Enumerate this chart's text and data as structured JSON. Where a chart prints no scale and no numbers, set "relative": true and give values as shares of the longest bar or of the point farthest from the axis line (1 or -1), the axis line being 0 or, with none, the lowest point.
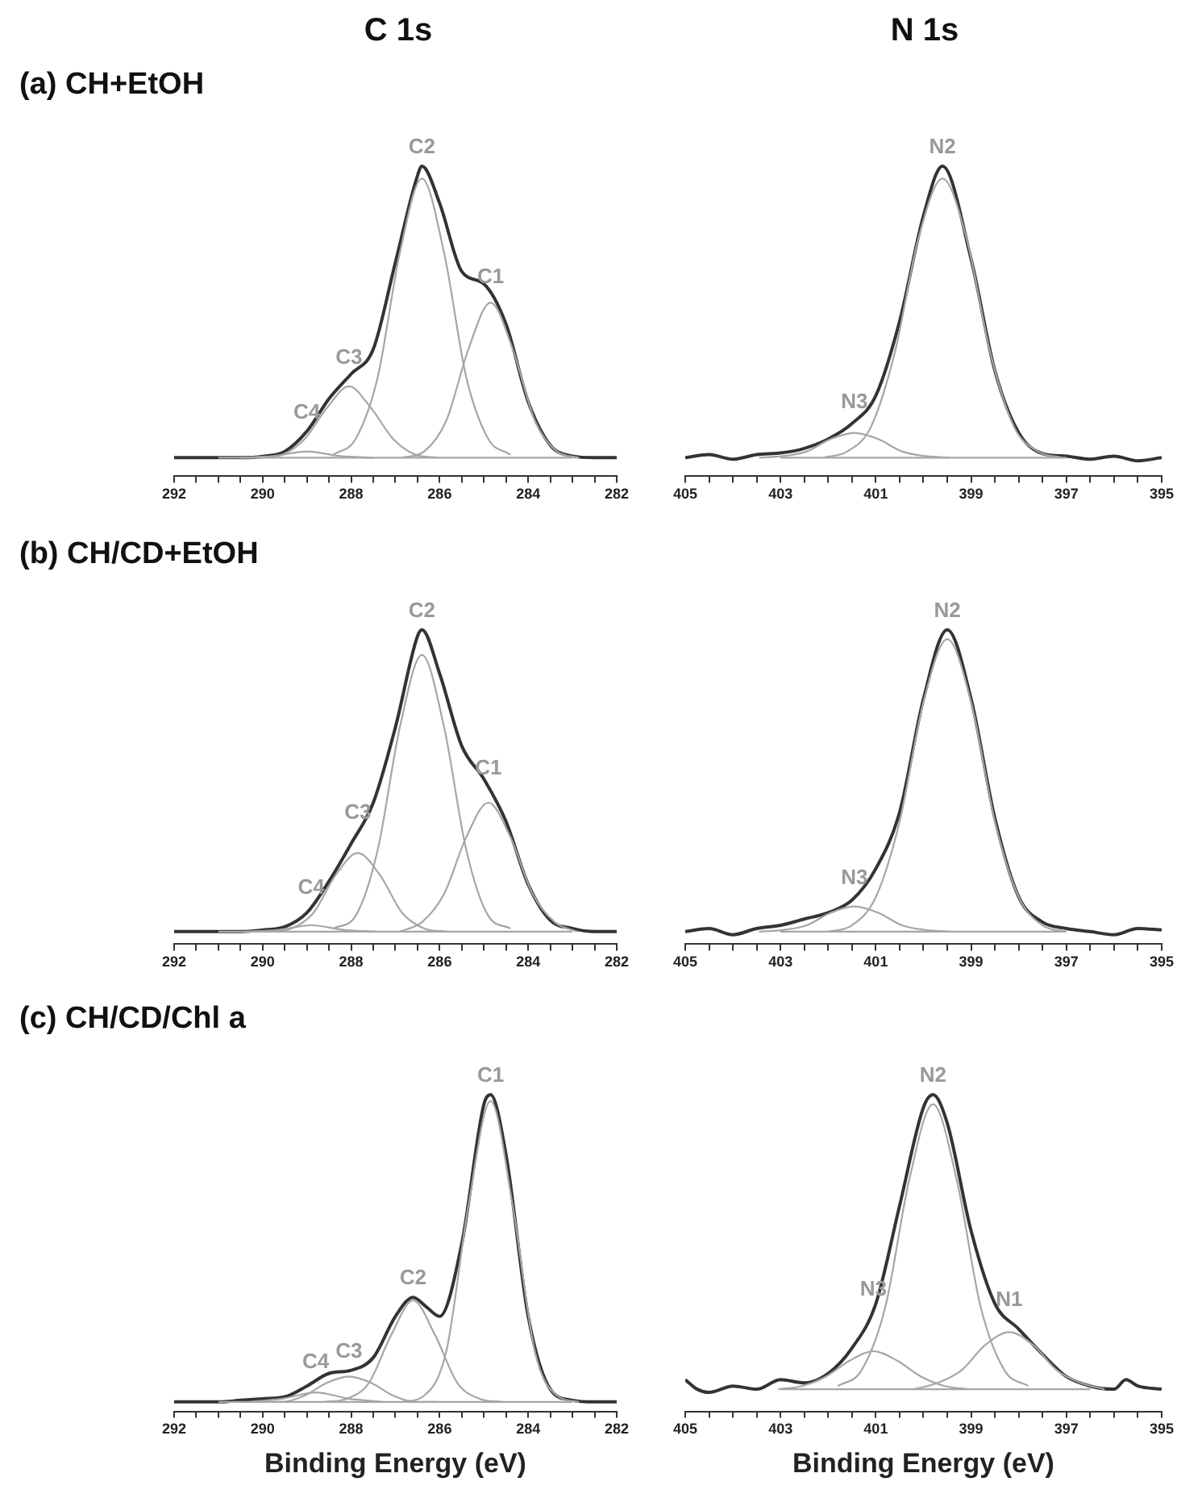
{
  "chart_data": [
    {
      "type": "line",
      "title": "C 1s",
      "subtitle": "(a) CH+EtOH",
      "relative": true,
      "xlim": [
        292,
        282
      ],
      "xticks": [
        292,
        {
          "value": 291.5,
          "label": null
        },
        {
          "value": 291,
          "label": null
        },
        {
          "value": 290.5,
          "label": null
        },
        290,
        {
          "value": 289.5,
          "label": null
        },
        {
          "value": 289,
          "label": null
        },
        {
          "value": 288.5,
          "label": null
        },
        288,
        {
          "value": 287.5,
          "label": null
        },
        {
          "value": 287,
          "label": null
        },
        {
          "value": 286.5,
          "label": null
        },
        286,
        {
          "value": 285.5,
          "label": null
        },
        {
          "value": 285,
          "label": null
        },
        {
          "value": 284.5,
          "label": null
        },
        284,
        {
          "value": 283.5,
          "label": null
        },
        {
          "value": 283,
          "label": null
        },
        {
          "value": 282.5,
          "label": null
        },
        282
      ],
      "series": [
        {
          "color": "#a6a6a6",
          "x": [
            291,
            283
          ],
          "values": [
            0.06,
            0.06
          ]
        },
        {
          "color": "#a6a6a6",
          "x": [
            290.5,
            289.75,
            289,
            288.25,
            287.5
          ],
          "values": [
            0.06,
            0.065,
            0.08,
            0.065,
            0.06
          ]
        },
        {
          "color": "#a6a6a6",
          "x": [
            290.05,
            289.55,
            289.05,
            288.55,
            288.05,
            287.55,
            287.05,
            286.55,
            286.05
          ],
          "values": [
            0.06,
            0.07,
            0.12,
            0.22,
            0.29,
            0.22,
            0.12,
            0.07,
            0.06
          ]
        },
        {
          "color": "#a6a6a6",
          "x": [
            288.4,
            287.9,
            287.4,
            286.9,
            286.4,
            285.9,
            285.4,
            284.9,
            284.4
          ],
          "values": [
            0.07,
            0.12,
            0.32,
            0.72,
            0.96,
            0.72,
            0.32,
            0.12,
            0.07
          ]
        },
        {
          "color": "#a6a6a6",
          "x": [
            286.85,
            286.35,
            285.85,
            285.35,
            284.85,
            284.35,
            283.85,
            283.35,
            282.85
          ],
          "values": [
            0.06,
            0.08,
            0.18,
            0.41,
            0.56,
            0.41,
            0.18,
            0.08,
            0.06
          ]
        },
        {
          "color": "#333333",
          "x": [
            292,
            291,
            290.5,
            290,
            289.5,
            289,
            288.5,
            288,
            287.5,
            287,
            286.5,
            286.4,
            286,
            285.5,
            285,
            284.5,
            284,
            283.5,
            283,
            282.5,
            282
          ],
          "values": [
            0.06,
            0.06,
            0.06,
            0.064,
            0.08,
            0.145,
            0.25,
            0.33,
            0.41,
            0.69,
            0.97,
            1,
            0.88,
            0.66,
            0.62,
            0.49,
            0.24,
            0.1,
            0.065,
            0.06,
            0.06
          ]
        }
      ],
      "annotations": [
        {
          "text": "C1",
          "x": 284.85,
          "y": 0.56
        },
        {
          "text": "C2",
          "x": 286.4,
          "y": 0.96
        },
        {
          "text": "C3",
          "x": 288.05,
          "y": 0.29
        },
        {
          "text": "C4",
          "x": 289,
          "y": 0.08
        }
      ]
    },
    {
      "type": "line",
      "title": "N 1s",
      "relative": true,
      "xlim": [
        405,
        395
      ],
      "xticks": [
        405,
        {
          "value": 404.5,
          "label": null
        },
        {
          "value": 404,
          "label": null
        },
        {
          "value": 403.5,
          "label": null
        },
        403,
        {
          "value": 402.5,
          "label": null
        },
        {
          "value": 402,
          "label": null
        },
        {
          "value": 401.5,
          "label": null
        },
        401,
        {
          "value": 400.5,
          "label": null
        },
        {
          "value": 400,
          "label": null
        },
        {
          "value": 399.5,
          "label": null
        },
        399,
        {
          "value": 398.5,
          "label": null
        },
        {
          "value": 398,
          "label": null
        },
        {
          "value": 397.5,
          "label": null
        },
        397,
        {
          "value": 396.5,
          "label": null
        },
        {
          "value": 396,
          "label": null
        },
        {
          "value": 395.5,
          "label": null
        },
        395
      ],
      "series": [
        {
          "color": "#a6a6a6",
          "x": [
            403,
            397
          ],
          "values": [
            0.06,
            0.06
          ]
        },
        {
          "color": "#a6a6a6",
          "x": [
            403.45,
            402.95,
            402.45,
            401.95,
            401.45,
            400.95,
            400.45,
            399.95,
            399.45
          ],
          "values": [
            0.06,
            0.065,
            0.08,
            0.12,
            0.14,
            0.12,
            0.08,
            0.065,
            0.06
          ]
        },
        {
          "color": "#a6a6a6",
          "x": [
            402.1,
            401.6,
            401.1,
            400.6,
            400.1,
            399.6,
            399.1,
            398.6,
            398.1,
            397.6,
            397.1
          ],
          "values": [
            0.06,
            0.08,
            0.16,
            0.4,
            0.77,
            0.96,
            0.77,
            0.4,
            0.16,
            0.08,
            0.06
          ]
        },
        {
          "color": "#333333",
          "x": [
            405,
            404.5,
            404,
            403.5,
            403,
            402.5,
            402,
            401.5,
            401,
            400.5,
            400,
            399.6,
            399,
            398.5,
            398,
            397.5,
            397,
            396.5,
            396,
            395.5,
            395
          ],
          "values": [
            0.06,
            0.07,
            0.055,
            0.07,
            0.075,
            0.09,
            0.12,
            0.17,
            0.26,
            0.5,
            0.84,
            1,
            0.7,
            0.34,
            0.14,
            0.073,
            0.065,
            0.055,
            0.065,
            0.05,
            0.06
          ]
        }
      ],
      "annotations": [
        {
          "text": "N2",
          "x": 399.6,
          "y": 0.96
        },
        {
          "text": "N3",
          "x": 401.45,
          "y": 0.14
        }
      ]
    },
    {
      "type": "line",
      "subtitle": "(b) CH/CD+EtOH",
      "relative": true,
      "xlim": [
        292,
        282
      ],
      "xticks": [
        292,
        {
          "value": 291.5,
          "label": null
        },
        {
          "value": 291,
          "label": null
        },
        {
          "value": 290.5,
          "label": null
        },
        290,
        {
          "value": 289.5,
          "label": null
        },
        {
          "value": 289,
          "label": null
        },
        {
          "value": 288.5,
          "label": null
        },
        288,
        {
          "value": 287.5,
          "label": null
        },
        {
          "value": 287,
          "label": null
        },
        {
          "value": 286.5,
          "label": null
        },
        286,
        {
          "value": 285.5,
          "label": null
        },
        {
          "value": 285,
          "label": null
        },
        {
          "value": 284.5,
          "label": null
        },
        284,
        {
          "value": 283.5,
          "label": null
        },
        {
          "value": 283,
          "label": null
        },
        {
          "value": 282.5,
          "label": null
        },
        282
      ],
      "series": [
        {
          "color": "#a6a6a6",
          "x": [
            291,
            283
          ],
          "values": [
            0.04,
            0.04
          ]
        },
        {
          "color": "#a6a6a6",
          "x": [
            290.4,
            289.65,
            288.9,
            288.15,
            287.4
          ],
          "values": [
            0.04,
            0.045,
            0.06,
            0.045,
            0.04
          ]
        },
        {
          "color": "#a6a6a6",
          "x": [
            289.85,
            289.35,
            288.85,
            288.35,
            287.85,
            287.35,
            286.85,
            286.35,
            285.85
          ],
          "values": [
            0.04,
            0.05,
            0.1,
            0.22,
            0.29,
            0.22,
            0.1,
            0.05,
            0.04
          ]
        },
        {
          "color": "#a6a6a6",
          "x": [
            288.4,
            287.9,
            287.4,
            286.9,
            286.4,
            285.9,
            285.4,
            284.9,
            284.4
          ],
          "values": [
            0.05,
            0.09,
            0.3,
            0.69,
            0.92,
            0.69,
            0.3,
            0.09,
            0.05
          ]
        },
        {
          "color": "#a6a6a6",
          "x": [
            286.9,
            286.4,
            285.9,
            285.4,
            284.9,
            284.4,
            283.9,
            283.4,
            282.9
          ],
          "values": [
            0.04,
            0.07,
            0.16,
            0.34,
            0.45,
            0.34,
            0.16,
            0.07,
            0.04
          ]
        },
        {
          "color": "#333333",
          "x": [
            292,
            291,
            290.5,
            290,
            289.5,
            289,
            288.5,
            288,
            287.5,
            287,
            286.5,
            286.4,
            286,
            285.5,
            285,
            284.5,
            284,
            283.5,
            283,
            282.5,
            282
          ],
          "values": [
            0.04,
            0.04,
            0.04,
            0.045,
            0.055,
            0.1,
            0.2,
            0.32,
            0.45,
            0.69,
            0.98,
            1,
            0.86,
            0.63,
            0.525,
            0.39,
            0.19,
            0.076,
            0.05,
            0.04,
            0.04
          ]
        }
      ],
      "annotations": [
        {
          "text": "C1",
          "x": 284.9,
          "y": 0.45
        },
        {
          "text": "C2",
          "x": 286.4,
          "y": 0.92
        },
        {
          "text": "C3",
          "x": 287.85,
          "y": 0.29
        },
        {
          "text": "C4",
          "x": 288.9,
          "y": 0.06
        }
      ]
    },
    {
      "type": "line",
      "relative": true,
      "xlim": [
        405,
        395
      ],
      "xticks": [
        405,
        {
          "value": 404.5,
          "label": null
        },
        {
          "value": 404,
          "label": null
        },
        {
          "value": 403.5,
          "label": null
        },
        403,
        {
          "value": 402.5,
          "label": null
        },
        {
          "value": 402,
          "label": null
        },
        {
          "value": 401.5,
          "label": null
        },
        401,
        {
          "value": 400.5,
          "label": null
        },
        {
          "value": 400,
          "label": null
        },
        {
          "value": 399.5,
          "label": null
        },
        399,
        {
          "value": 398.5,
          "label": null
        },
        {
          "value": 398,
          "label": null
        },
        {
          "value": 397.5,
          "label": null
        },
        397,
        {
          "value": 396.5,
          "label": null
        },
        {
          "value": 396,
          "label": null
        },
        {
          "value": 395.5,
          "label": null
        },
        395
      ],
      "series": [
        {
          "color": "#a6a6a6",
          "x": [
            403,
            397
          ],
          "values": [
            0.04,
            0.04
          ]
        },
        {
          "color": "#a6a6a6",
          "x": [
            403.45,
            402.95,
            402.45,
            401.95,
            401.45,
            400.95,
            400.45,
            399.95,
            399.45
          ],
          "values": [
            0.04,
            0.045,
            0.06,
            0.1,
            0.12,
            0.1,
            0.06,
            0.045,
            0.04
          ]
        },
        {
          "color": "#a6a6a6",
          "x": [
            402,
            401.5,
            401,
            400.5,
            400,
            399.5,
            399,
            398.5,
            398,
            397.5,
            397
          ],
          "values": [
            0.04,
            0.06,
            0.15,
            0.39,
            0.77,
            0.97,
            0.77,
            0.39,
            0.15,
            0.06,
            0.04
          ]
        },
        {
          "color": "#333333",
          "x": [
            405,
            404.5,
            404,
            403.5,
            403,
            402.5,
            402,
            401.5,
            401,
            400.5,
            400,
            399.5,
            399,
            398.5,
            398,
            397.5,
            397,
            396.5,
            396,
            395.5,
            395
          ],
          "values": [
            0.04,
            0.05,
            0.03,
            0.05,
            0.06,
            0.08,
            0.1,
            0.14,
            0.24,
            0.42,
            0.78,
            1,
            0.78,
            0.4,
            0.15,
            0.07,
            0.05,
            0.04,
            0.03,
            0.05,
            0.045
          ]
        }
      ],
      "annotations": [
        {
          "text": "N2",
          "x": 399.5,
          "y": 0.97
        },
        {
          "text": "N3",
          "x": 401.45,
          "y": 0.12
        }
      ]
    },
    {
      "type": "line",
      "subtitle": "(c) CH/CD/Chl a",
      "xlabel": "Binding Energy (eV)",
      "relative": true,
      "xlim": [
        292,
        282
      ],
      "xticks": [
        292,
        {
          "value": 291.5,
          "label": null
        },
        {
          "value": 291,
          "label": null
        },
        {
          "value": 290.5,
          "label": null
        },
        290,
        {
          "value": 289.5,
          "label": null
        },
        {
          "value": 289,
          "label": null
        },
        {
          "value": 288.5,
          "label": null
        },
        288,
        {
          "value": 287.5,
          "label": null
        },
        {
          "value": 287,
          "label": null
        },
        {
          "value": 286.5,
          "label": null
        },
        286,
        {
          "value": 285.5,
          "label": null
        },
        {
          "value": 285,
          "label": null
        },
        {
          "value": 284.5,
          "label": null
        },
        284,
        {
          "value": 283.5,
          "label": null
        },
        {
          "value": 283,
          "label": null
        },
        {
          "value": 282.5,
          "label": null
        },
        282
      ],
      "series": [
        {
          "color": "#a6a6a6",
          "x": [
            291,
            283
          ],
          "values": [
            0.03,
            0.03
          ]
        },
        {
          "color": "#a6a6a6",
          "x": [
            290.3,
            289.55,
            288.8,
            288.05,
            287.3
          ],
          "values": [
            0.03,
            0.04,
            0.06,
            0.04,
            0.03
          ]
        },
        {
          "color": "#a6a6a6",
          "x": [
            290.05,
            289.55,
            289.05,
            288.55,
            288.05,
            287.55,
            287.05,
            286.55,
            286.05
          ],
          "values": [
            0.03,
            0.03,
            0.05,
            0.09,
            0.11,
            0.09,
            0.05,
            0.03,
            0.03
          ]
        },
        {
          "color": "#a6a6a6",
          "x": [
            288.6,
            288.1,
            287.6,
            287.1,
            286.6,
            286.1,
            285.6,
            285.1,
            284.6
          ],
          "values": [
            0.03,
            0.04,
            0.09,
            0.24,
            0.35,
            0.24,
            0.09,
            0.04,
            0.03
          ]
        },
        {
          "color": "#a6a6a6",
          "x": [
            286.85,
            286.35,
            285.85,
            285.35,
            284.85,
            284.35,
            283.85,
            283.35,
            282.85
          ],
          "values": [
            0.03,
            0.05,
            0.19,
            0.65,
            0.98,
            0.65,
            0.19,
            0.05,
            0.03
          ]
        },
        {
          "color": "#333333",
          "x": [
            292,
            291,
            290.5,
            290,
            289.5,
            289,
            288.5,
            288,
            287.5,
            287,
            286.6,
            286.3,
            286,
            285.5,
            285,
            284.85,
            284.5,
            284,
            283.5,
            283,
            282.5,
            282
          ],
          "values": [
            0.03,
            0.03,
            0.035,
            0.04,
            0.046,
            0.08,
            0.12,
            0.13,
            0.17,
            0.3,
            0.36,
            0.33,
            0.3,
            0.53,
            0.97,
            1,
            0.81,
            0.3,
            0.07,
            0.035,
            0.03,
            0.03
          ]
        }
      ],
      "annotations": [
        {
          "text": "C1",
          "x": 284.85,
          "y": 0.98
        },
        {
          "text": "C2",
          "x": 286.6,
          "y": 0.35
        },
        {
          "text": "C3",
          "x": 288.05,
          "y": 0.11
        },
        {
          "text": "C4",
          "x": 288.8,
          "y": 0.06
        }
      ]
    },
    {
      "type": "line",
      "xlabel": "Binding Energy (eV)",
      "relative": true,
      "xlim": [
        405,
        395
      ],
      "xticks": [
        405,
        {
          "value": 404.5,
          "label": null
        },
        {
          "value": 404,
          "label": null
        },
        {
          "value": 403.5,
          "label": null
        },
        403,
        {
          "value": 402.5,
          "label": null
        },
        {
          "value": 402,
          "label": null
        },
        {
          "value": 401.5,
          "label": null
        },
        401,
        {
          "value": 400.5,
          "label": null
        },
        {
          "value": 400,
          "label": null
        },
        {
          "value": 399.5,
          "label": null
        },
        399,
        {
          "value": 398.5,
          "label": null
        },
        {
          "value": 398,
          "label": null
        },
        {
          "value": 397.5,
          "label": null
        },
        397,
        {
          "value": 396.5,
          "label": null
        },
        {
          "value": 396,
          "label": null
        },
        {
          "value": 395.5,
          "label": null
        },
        395
      ],
      "series": [
        {
          "color": "#a6a6a6",
          "x": [
            403,
            396.5
          ],
          "values": [
            0.07,
            0.07
          ]
        },
        {
          "color": "#a6a6a6",
          "x": [
            403.05,
            402.55,
            402.05,
            401.55,
            401.05,
            400.55,
            400.05,
            399.55,
            399.05
          ],
          "values": [
            0.07,
            0.08,
            0.11,
            0.16,
            0.19,
            0.16,
            0.11,
            0.08,
            0.07
          ]
        },
        {
          "color": "#a6a6a6",
          "x": [
            401.8,
            401.3,
            400.8,
            400.3,
            399.8,
            399.3,
            398.8,
            398.3,
            397.8
          ],
          "values": [
            0.08,
            0.13,
            0.33,
            0.73,
            0.97,
            0.73,
            0.33,
            0.13,
            0.08
          ]
        },
        {
          "color": "#a6a6a6",
          "x": [
            400.2,
            399.7,
            399.2,
            398.7,
            398.2,
            397.7,
            397.2,
            396.7,
            396.2
          ],
          "values": [
            0.07,
            0.09,
            0.13,
            0.21,
            0.25,
            0.21,
            0.13,
            0.09,
            0.07
          ]
        },
        {
          "color": "#333333",
          "x": [
            405,
            404.75,
            404.5,
            404,
            403.5,
            403,
            402.5,
            402,
            401.5,
            401,
            400.5,
            400,
            399.8,
            399.5,
            399,
            398.5,
            398,
            397.5,
            397,
            396.5,
            396,
            395.75,
            395.5,
            395
          ],
          "values": [
            0.1,
            0.07,
            0.06,
            0.08,
            0.07,
            0.1,
            0.09,
            0.12,
            0.2,
            0.34,
            0.65,
            0.96,
            1,
            0.91,
            0.57,
            0.34,
            0.26,
            0.18,
            0.11,
            0.08,
            0.07,
            0.1,
            0.08,
            0.07
          ]
        }
      ],
      "annotations": [
        {
          "text": "N2",
          "x": 399.8,
          "y": 0.97
        },
        {
          "text": "N3",
          "x": 401.05,
          "y": 0.19
        },
        {
          "text": "N1",
          "x": 398.2,
          "y": 0.25
        }
      ]
    }
  ]
}
